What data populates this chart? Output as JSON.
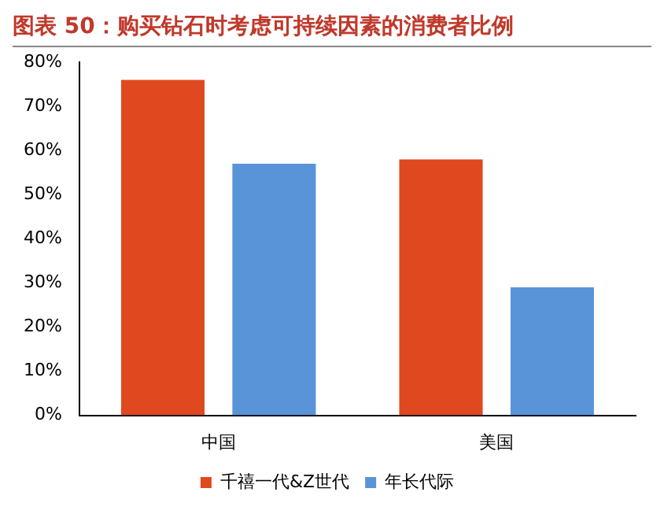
{
  "chart_data": {
    "type": "bar",
    "title": "图表 50：购买钻石时考虑可持续因素的消费者比例",
    "categories": [
      "中国",
      "美国"
    ],
    "series": [
      {
        "name": "千禧一代&Z世代",
        "color": "#e0491f",
        "values": [
          76,
          58
        ]
      },
      {
        "name": "年长代际",
        "color": "#5a94d8",
        "values": [
          57,
          29
        ]
      }
    ],
    "ylim": [
      0,
      80
    ],
    "yticks": [
      {
        "value": 0,
        "label": "0%"
      },
      {
        "value": 10,
        "label": "10%"
      },
      {
        "value": 20,
        "label": "20%"
      },
      {
        "value": 30,
        "label": "30%"
      },
      {
        "value": 40,
        "label": "40%"
      },
      {
        "value": 50,
        "label": "50%"
      },
      {
        "value": 60,
        "label": "60%"
      },
      {
        "value": 70,
        "label": "70%"
      },
      {
        "value": 80,
        "label": "80%"
      }
    ],
    "grid": false,
    "legend": "bottom"
  }
}
